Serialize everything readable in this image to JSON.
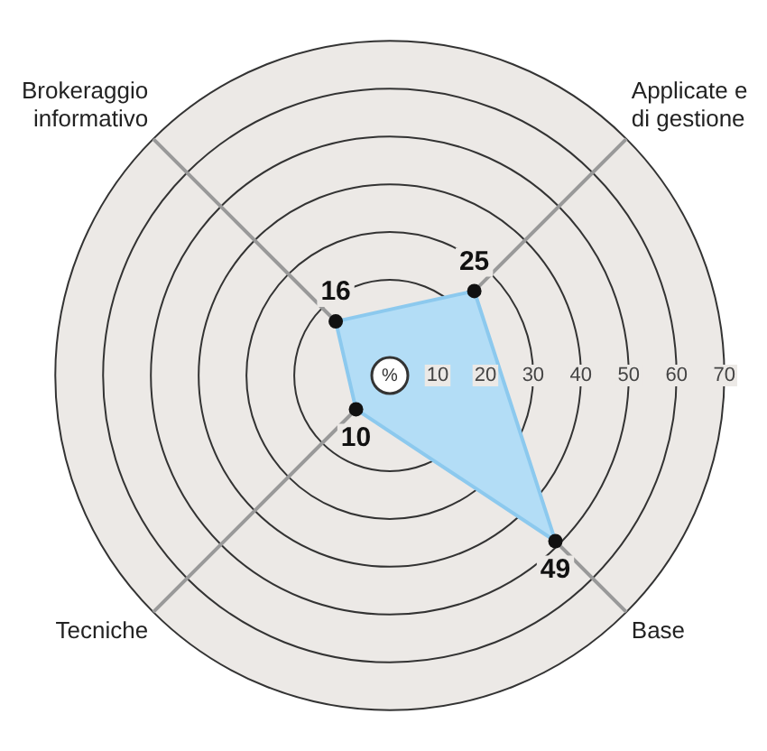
{
  "chart_data": {
    "type": "radar",
    "ylabel": "%",
    "categories": [
      "Brokeraggio informativo",
      "Applicate e di gestione",
      "Base",
      "Tecniche"
    ],
    "series": [
      {
        "color": "#b3ddf6",
        "values": [
          16,
          25,
          49,
          10
        ]
      }
    ],
    "ylim": [
      0,
      70
    ],
    "yticks": [
      10,
      20,
      30,
      40,
      50,
      60,
      70
    ],
    "grid": true,
    "legend": false,
    "marker": "circle",
    "data_labels": true
  }
}
